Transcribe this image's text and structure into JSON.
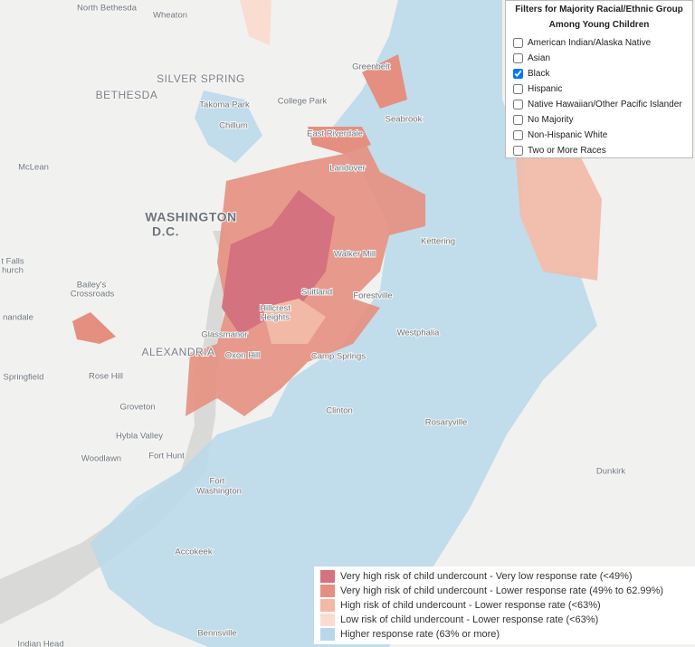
{
  "filters": {
    "title": "Filters for Majority Racial/Ethnic Group",
    "subtitle": "Among Young Children",
    "options": [
      {
        "label": "American Indian/Alaska Native",
        "checked": false
      },
      {
        "label": "Asian",
        "checked": false
      },
      {
        "label": "Black",
        "checked": true
      },
      {
        "label": "Hispanic",
        "checked": false
      },
      {
        "label": "Native Hawaiian/Other Pacific Islander",
        "checked": false
      },
      {
        "label": "No Majority",
        "checked": false
      },
      {
        "label": "Non-Hispanic White",
        "checked": false
      },
      {
        "label": "Two or More Races",
        "checked": false
      }
    ]
  },
  "legend": [
    {
      "label": "Very high risk of child undercount - Very low response rate (<49%)",
      "color": "#d5727f"
    },
    {
      "label": "Very high risk of child undercount - Lower response rate (49% to 62.99%)",
      "color": "#e58f80"
    },
    {
      "label": "High risk of child undercount - Lower response rate (<63%)",
      "color": "#f2b9a6"
    },
    {
      "label": "Low risk of child undercount - Lower response rate (<63%)",
      "color": "#f9ddd0"
    },
    {
      "label": "Higher response rate (63% or more)",
      "color": "#b8d8ea"
    }
  ],
  "places": [
    "North Bethesda",
    "Wheaton",
    "SILVER SPRING",
    "Greenbelt",
    "BETHESDA",
    "Takoma Park",
    "College Park",
    "Chillum",
    "Seabrook",
    "East Riverdale",
    "McLean",
    "Landover",
    "WASHINGTON",
    "D.C.",
    "Kettering",
    "Walker Mill",
    "t Falls",
    "hurch",
    "Bailey's",
    "Crossroads",
    "Suitland",
    "Forestville",
    "Hillcrest",
    "Heights",
    "nandale",
    "ALEXANDRIA",
    "Glassmanor",
    "Westphalia",
    "Oxon Hill",
    "Camp Springs",
    "Springfield",
    "Rose Hill",
    "Groveton",
    "Clinton",
    "Rosaryville",
    "Hybla Valley",
    "Fort Hunt",
    "Woodlawn",
    "Dunkirk",
    "Fort",
    "Washington",
    "Accokeek",
    "Bennsville",
    "Indian Head"
  ]
}
